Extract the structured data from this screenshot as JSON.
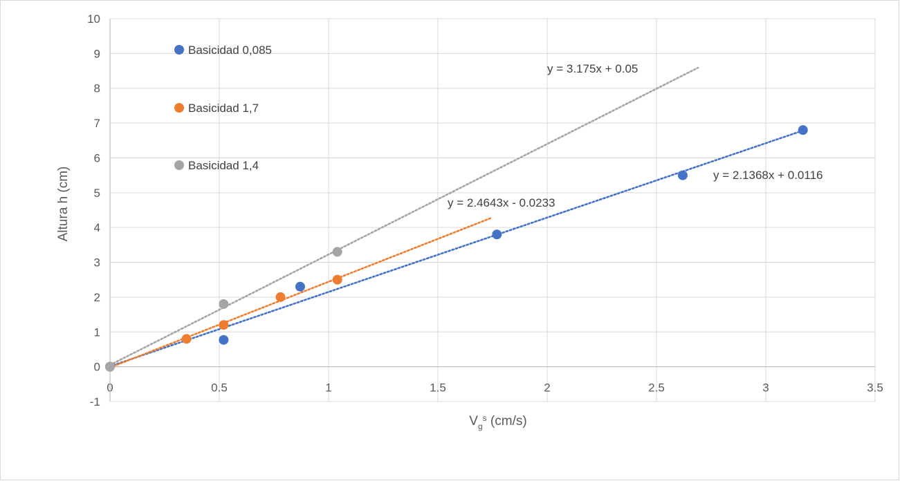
{
  "chart_data": {
    "type": "scatter",
    "title": "",
    "xlabel": {
      "base": "V",
      "sub": "g",
      "sup": "s",
      "unit": " (cm/s)"
    },
    "ylabel": "Altura h (cm)",
    "xlim": [
      0,
      3.5
    ],
    "ylim": [
      -1,
      10
    ],
    "x_ticks": [
      0,
      0.5,
      1,
      1.5,
      2,
      2.5,
      3,
      3.5
    ],
    "x_tick_labels": [
      "0",
      "0.5",
      "1",
      "1.5",
      "2",
      "2.5",
      "3",
      "3.5"
    ],
    "y_ticks": [
      -1,
      0,
      1,
      2,
      3,
      4,
      5,
      6,
      7,
      8,
      9,
      10
    ],
    "y_tick_labels": [
      "-1",
      "0",
      "1",
      "2",
      "3",
      "4",
      "5",
      "6",
      "7",
      "8",
      "9",
      "10"
    ],
    "grid": {
      "x": true,
      "y": true
    },
    "legend_position": "top-left",
    "series": [
      {
        "name": "Basicidad 0,085",
        "color": "#4472c4",
        "x": [
          0,
          0.52,
          0.87,
          1.77,
          2.62,
          3.17
        ],
        "y": [
          0,
          0.77,
          2.3,
          3.8,
          5.5,
          6.8
        ],
        "trendline": {
          "slope": 2.1368,
          "intercept": 0.0116,
          "x_range": [
            0,
            3.17
          ],
          "label": "y = 2.1368x + 0.0116"
        }
      },
      {
        "name": "Basicidad 1,7",
        "color": "#ed7d31",
        "x": [
          0,
          0.35,
          0.52,
          0.78,
          1.04
        ],
        "y": [
          0,
          0.8,
          1.2,
          2.0,
          2.5
        ],
        "trendline": {
          "slope": 2.4643,
          "intercept": -0.0233,
          "x_range": [
            0,
            1.74
          ],
          "label": "y = 2.4643x - 0.0233"
        }
      },
      {
        "name": "Basicidad 1,4",
        "color": "#a5a5a5",
        "x": [
          0,
          0.52,
          1.04
        ],
        "y": [
          0,
          1.8,
          3.3
        ],
        "trendline": {
          "slope": 3.175,
          "intercept": 0.05,
          "x_range": [
            0,
            2.69
          ],
          "label": "y = 3.175x + 0.05"
        }
      }
    ]
  }
}
